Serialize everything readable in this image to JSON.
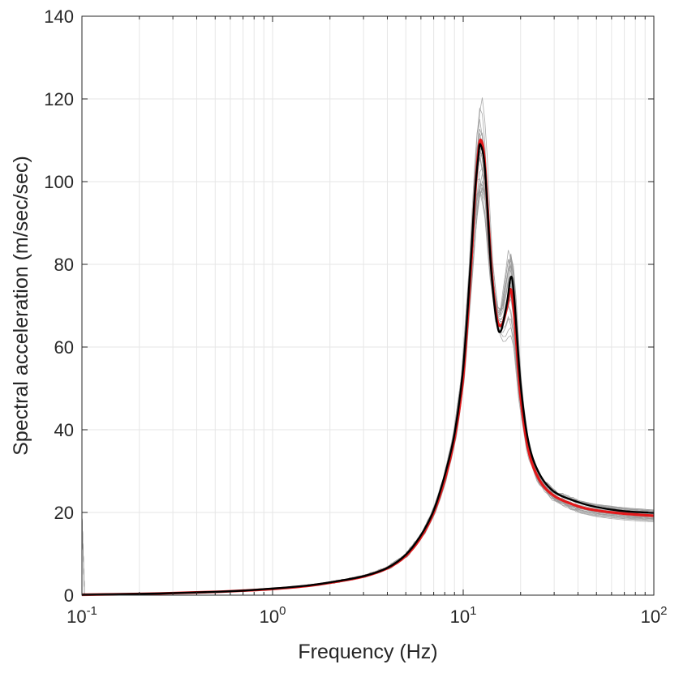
{
  "chart_data": {
    "type": "line",
    "xlabel": "Frequency (Hz)",
    "ylabel": "Spectral acceleration (m/sec/sec)",
    "xscale": "log",
    "xlim": [
      0.1,
      100
    ],
    "ylim": [
      0,
      140
    ],
    "grid": true,
    "x_ticks": [
      {
        "base": "10",
        "exp": "-1",
        "value": 0.1
      },
      {
        "base": "10",
        "exp": "0",
        "value": 1
      },
      {
        "base": "10",
        "exp": "1",
        "value": 10
      },
      {
        "base": "10",
        "exp": "2",
        "value": 100
      }
    ],
    "y_ticks": [
      "0",
      "20",
      "40",
      "60",
      "80",
      "100",
      "120",
      "140"
    ],
    "series": [
      {
        "color": "#e31a1c",
        "x": [
          0.1,
          0.2,
          0.3,
          0.5,
          0.7,
          1.0,
          1.5,
          2.0,
          3.0,
          4.0,
          5.0,
          6.0,
          7.0,
          8.0,
          9.0,
          10.0,
          11.0,
          11.5,
          12.0,
          12.4,
          13.0,
          14.0,
          15.0,
          16.0,
          17.0,
          17.7,
          18.5,
          20.0,
          22.0,
          25.0,
          30.0,
          40.0,
          50.0,
          70.0,
          100.0
        ],
        "y": [
          0.1,
          0.3,
          0.5,
          0.8,
          1.1,
          1.5,
          2.2,
          3.0,
          4.5,
          6.5,
          9.5,
          14.0,
          20.0,
          28.0,
          38.0,
          53.0,
          80.0,
          96.0,
          107.0,
          110.0,
          104.0,
          80.0,
          67.0,
          65.5,
          70.0,
          74.0,
          68.0,
          48.0,
          35.0,
          28.0,
          24.0,
          21.5,
          20.5,
          19.7,
          19.2
        ]
      },
      {
        "color": "#000000",
        "x": [
          0.1,
          0.2,
          0.3,
          0.5,
          0.7,
          1.0,
          1.5,
          2.0,
          3.0,
          4.0,
          5.0,
          6.0,
          7.0,
          8.0,
          9.0,
          10.0,
          11.0,
          11.5,
          12.0,
          12.3,
          13.0,
          14.0,
          15.0,
          15.8,
          17.0,
          17.8,
          18.5,
          20.0,
          22.0,
          25.0,
          30.0,
          40.0,
          50.0,
          70.0,
          100.0
        ],
        "y": [
          0.1,
          0.3,
          0.5,
          0.8,
          1.1,
          1.6,
          2.3,
          3.1,
          4.6,
          6.6,
          9.8,
          14.5,
          20.5,
          29.0,
          39.0,
          55.0,
          82.0,
          97.0,
          106.0,
          109.0,
          103.0,
          79.0,
          66.0,
          64.0,
          71.0,
          77.0,
          72.0,
          51.0,
          37.0,
          29.5,
          25.0,
          22.5,
          21.3,
          20.3,
          19.9
        ]
      }
    ]
  }
}
